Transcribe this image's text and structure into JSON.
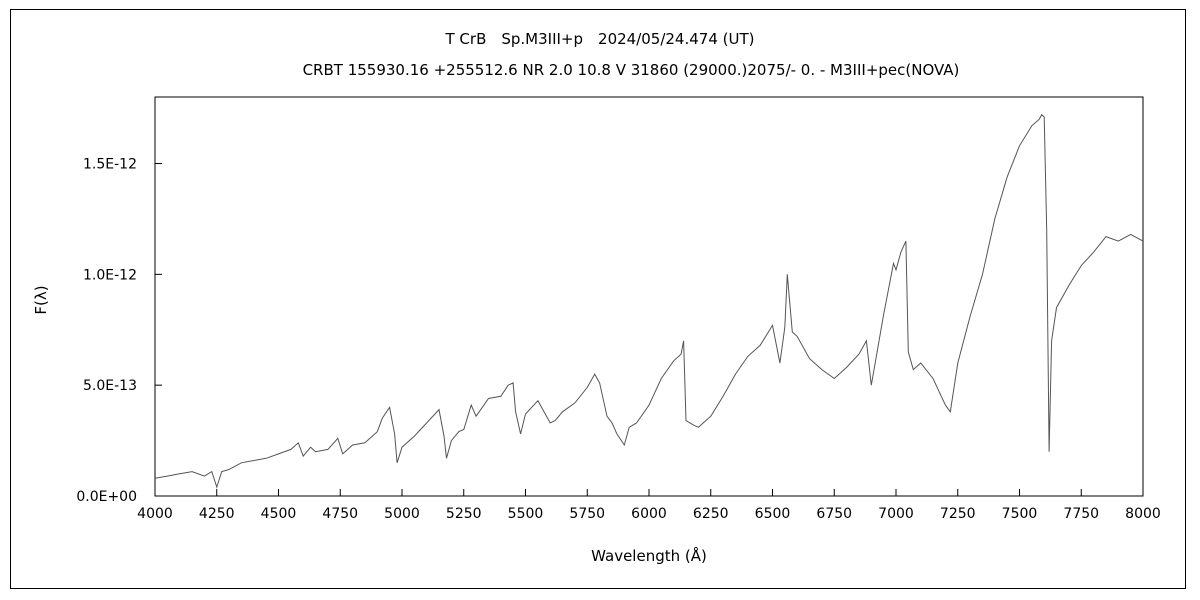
{
  "chart_data": {
    "type": "line",
    "title": "T CrB　Sp.M3III+p　2024/05/24.474 (UT)",
    "subtitle": "CRBT 155930.16 +255512.6 NR 2.0 10.8 V 31860 (29000.)2075/-  0. - M3III+pec(NOVA)",
    "xlabel": "Wavelength (Å)",
    "ylabel": "F(λ)",
    "xlim": [
      4000,
      8000
    ],
    "ylim": [
      0,
      1.8e-12
    ],
    "xticks": [
      4000,
      4250,
      4500,
      4750,
      5000,
      5250,
      5500,
      5750,
      6000,
      6250,
      6500,
      6750,
      7000,
      7250,
      7500,
      7750,
      8000
    ],
    "xtick_labels": [
      "4000",
      "4250",
      "4500",
      "4750",
      "5000",
      "5250",
      "5500",
      "5750",
      "6000",
      "6250",
      "6500",
      "6750",
      "7000",
      "7250",
      "7500",
      "7750",
      "8000"
    ],
    "yticks": [
      0,
      5e-13,
      1e-12,
      1.5e-12
    ],
    "ytick_labels": [
      "0.0E+00",
      "5.0E-13",
      "1.0E-12",
      "1.5E-12"
    ],
    "grid": false,
    "legend": "none",
    "line_color": "#555555",
    "series": [
      {
        "x": [
          4000,
          4050,
          4100,
          4150,
          4200,
          4230,
          4250,
          4270,
          4300,
          4350,
          4400,
          4450,
          4500,
          4550,
          4580,
          4600,
          4630,
          4650,
          4700,
          4740,
          4760,
          4800,
          4850,
          4900,
          4920,
          4950,
          4970,
          4980,
          5000,
          5050,
          5100,
          5150,
          5170,
          5180,
          5200,
          5230,
          5250,
          5280,
          5300,
          5350,
          5400,
          5430,
          5450,
          5460,
          5480,
          5500,
          5550,
          5600,
          5620,
          5650,
          5700,
          5750,
          5780,
          5800,
          5830,
          5850,
          5870,
          5900,
          5920,
          5950,
          6000,
          6050,
          6100,
          6130,
          6140,
          6150,
          6180,
          6200,
          6250,
          6300,
          6350,
          6400,
          6450,
          6500,
          6530,
          6550,
          6560,
          6580,
          6600,
          6650,
          6700,
          6750,
          6800,
          6850,
          6880,
          6900,
          6950,
          6990,
          7000,
          7020,
          7040,
          7050,
          7070,
          7100,
          7150,
          7200,
          7220,
          7250,
          7300,
          7350,
          7400,
          7450,
          7500,
          7550,
          7580,
          7590,
          7600,
          7610,
          7620,
          7630,
          7650,
          7700,
          7750,
          7800,
          7850,
          7900,
          7950,
          8000
        ],
        "y": [
          8e-14,
          9e-14,
          1e-13,
          1.1e-13,
          9e-14,
          1.1e-13,
          4e-14,
          1.1e-13,
          1.2e-13,
          1.5e-13,
          1.6e-13,
          1.7e-13,
          1.9e-13,
          2.1e-13,
          2.4e-13,
          1.8e-13,
          2.2e-13,
          2e-13,
          2.1e-13,
          2.6e-13,
          1.9e-13,
          2.3e-13,
          2.4e-13,
          2.9e-13,
          3.5e-13,
          4e-13,
          2.8e-13,
          1.5e-13,
          2.2e-13,
          2.7e-13,
          3.3e-13,
          3.9e-13,
          2.7e-13,
          1.7e-13,
          2.5e-13,
          2.9e-13,
          3e-13,
          4.1e-13,
          3.6e-13,
          4.4e-13,
          4.5e-13,
          5e-13,
          5.1e-13,
          3.8e-13,
          2.8e-13,
          3.7e-13,
          4.3e-13,
          3.3e-13,
          3.4e-13,
          3.8e-13,
          4.2e-13,
          4.9e-13,
          5.5e-13,
          5.1e-13,
          3.6e-13,
          3.3e-13,
          2.8e-13,
          2.3e-13,
          3.1e-13,
          3.3e-13,
          4.1e-13,
          5.3e-13,
          6.1e-13,
          6.4e-13,
          7e-13,
          3.4e-13,
          3.2e-13,
          3.1e-13,
          3.6e-13,
          4.5e-13,
          5.5e-13,
          6.3e-13,
          6.8e-13,
          7.7e-13,
          6e-13,
          7.6e-13,
          1e-12,
          7.4e-13,
          7.2e-13,
          6.2e-13,
          5.7e-13,
          5.3e-13,
          5.8e-13,
          6.4e-13,
          7e-13,
          5e-13,
          8.2e-13,
          1.05e-12,
          1.02e-12,
          1.1e-12,
          1.15e-12,
          6.5e-13,
          5.7e-13,
          6e-13,
          5.3e-13,
          4.1e-13,
          3.8e-13,
          6e-13,
          8.1e-13,
          1e-12,
          1.25e-12,
          1.44e-12,
          1.58e-12,
          1.67e-12,
          1.7e-12,
          1.72e-12,
          1.71e-12,
          1.2e-12,
          2e-13,
          7e-13,
          8.5e-13,
          9.5e-13,
          1.04e-12,
          1.1e-12,
          1.17e-12,
          1.15e-12,
          1.18e-12,
          1.15e-12
        ]
      }
    ]
  }
}
